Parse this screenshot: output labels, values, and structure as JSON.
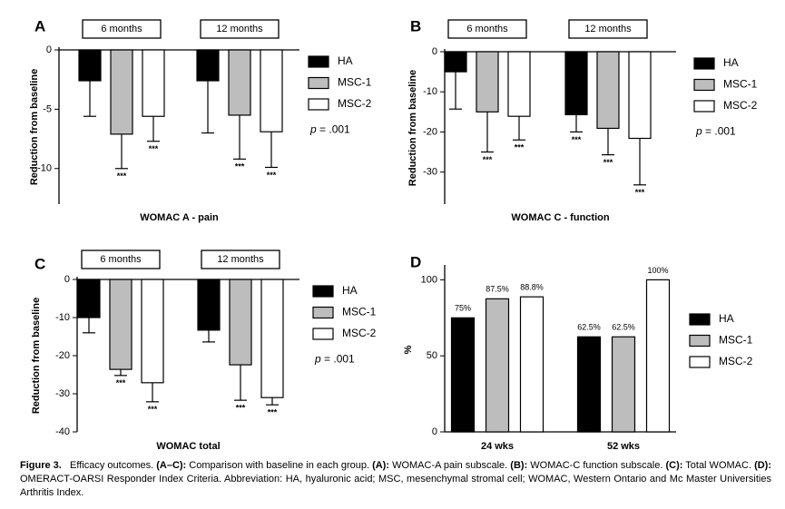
{
  "chart_data": [
    {
      "type": "bar",
      "panel": "A",
      "x_label": "WOMAC A - pain",
      "y_label": "Reduction from baseline",
      "categories": [
        "6 months",
        "12 months"
      ],
      "ylim": [
        -13,
        0
      ],
      "yticks": [
        0,
        -5,
        -10
      ],
      "series": [
        {
          "name": "HA",
          "color": "#000000",
          "values": [
            -2.6,
            -2.6
          ],
          "errors": [
            3.0,
            4.4
          ],
          "labels": [
            null,
            null
          ]
        },
        {
          "name": "MSC-1",
          "color": "#bdbdbd",
          "values": [
            -7.1,
            -5.5
          ],
          "errors": [
            2.9,
            3.7
          ],
          "labels": [
            "***",
            "***"
          ]
        },
        {
          "name": "MSC-2",
          "color": "#ffffff",
          "values": [
            -5.6,
            -6.9
          ],
          "errors": [
            2.1,
            3.0
          ],
          "labels": [
            "***",
            "***"
          ]
        }
      ],
      "p_label": "p",
      "p_value": "= .001"
    },
    {
      "type": "bar",
      "panel": "B",
      "x_label": "WOMAC C - function",
      "y_label": "Reduction from baseline",
      "categories": [
        "6 months",
        "12 months"
      ],
      "ylim": [
        -38,
        0
      ],
      "yticks": [
        0,
        -10,
        -20,
        -30
      ],
      "series": [
        {
          "name": "HA",
          "color": "#000000",
          "values": [
            -5,
            -15.7
          ],
          "errors": [
            9.3,
            4.3
          ],
          "labels": [
            null,
            "***"
          ]
        },
        {
          "name": "MSC-1",
          "color": "#bdbdbd",
          "values": [
            -15,
            -19.1
          ],
          "errors": [
            10,
            6.6
          ],
          "labels": [
            "***",
            "***"
          ]
        },
        {
          "name": "MSC-2",
          "color": "#ffffff",
          "values": [
            -16.1,
            -21.6
          ],
          "errors": [
            5.9,
            11.6
          ],
          "labels": [
            "***",
            "***"
          ]
        }
      ],
      "p_label": "p",
      "p_value": "= .001"
    },
    {
      "type": "bar",
      "panel": "C",
      "x_label": "WOMAC total",
      "y_label": "Reduction from baseline",
      "categories": [
        "6 months",
        "12 months"
      ],
      "ylim": [
        -40,
        0
      ],
      "yticks": [
        0,
        -10,
        -20,
        -30,
        -40
      ],
      "series": [
        {
          "name": "HA",
          "color": "#000000",
          "values": [
            -10,
            -13.3
          ],
          "errors": [
            4,
            3.1
          ],
          "labels": [
            null,
            null
          ]
        },
        {
          "name": "MSC-1",
          "color": "#bdbdbd",
          "values": [
            -23.6,
            -22.4
          ],
          "errors": [
            1.6,
            9.3
          ],
          "labels": [
            "***",
            "***"
          ]
        },
        {
          "name": "MSC-2",
          "color": "#ffffff",
          "values": [
            -27.1,
            -31
          ],
          "errors": [
            5,
            1.9
          ],
          "labels": [
            "***",
            "***"
          ]
        }
      ],
      "p_label": "p",
      "p_value": "= .001"
    },
    {
      "type": "pctbar",
      "panel": "D",
      "y_label": "%",
      "categories": [
        "24 wks",
        "52 wks"
      ],
      "ylim": [
        0,
        108
      ],
      "yticks": [
        0,
        50,
        100
      ],
      "series": [
        {
          "name": "HA",
          "color": "#000000",
          "values": [
            75,
            62.5
          ],
          "value_labels": [
            "75%",
            "62.5%"
          ]
        },
        {
          "name": "MSC-1",
          "color": "#bdbdbd",
          "values": [
            87.5,
            62.5
          ],
          "value_labels": [
            "87.5%",
            "62.5%"
          ]
        },
        {
          "name": "MSC-2",
          "color": "#ffffff",
          "values": [
            88.8,
            100
          ],
          "value_labels": [
            "88.8%",
            "100%"
          ]
        }
      ]
    }
  ],
  "caption": [
    {
      "text": "Figure 3.",
      "bold": true
    },
    {
      "text": "   Efficacy outcomes. ",
      "bold": false
    },
    {
      "text": "(A–C):",
      "bold": true
    },
    {
      "text": " Comparison with baseline in each group. ",
      "bold": false
    },
    {
      "text": "(A):",
      "bold": true
    },
    {
      "text": " WOMAC-A pain subscale. ",
      "bold": false
    },
    {
      "text": "(B):",
      "bold": true
    },
    {
      "text": " WOMAC-C function subscale. ",
      "bold": false
    },
    {
      "text": "(C):",
      "bold": true
    },
    {
      "text": " Total WOMAC. ",
      "bold": false
    },
    {
      "text": "(D):",
      "bold": true
    },
    {
      "text": " OMERACT-OARSI Responder Index Criteria. Abbreviation: HA, hyaluronic acid; MSC, mesenchymal stromal cell; WOMAC, Western Ontario and Mc Master Universities Arthritis Index.",
      "bold": false
    }
  ]
}
